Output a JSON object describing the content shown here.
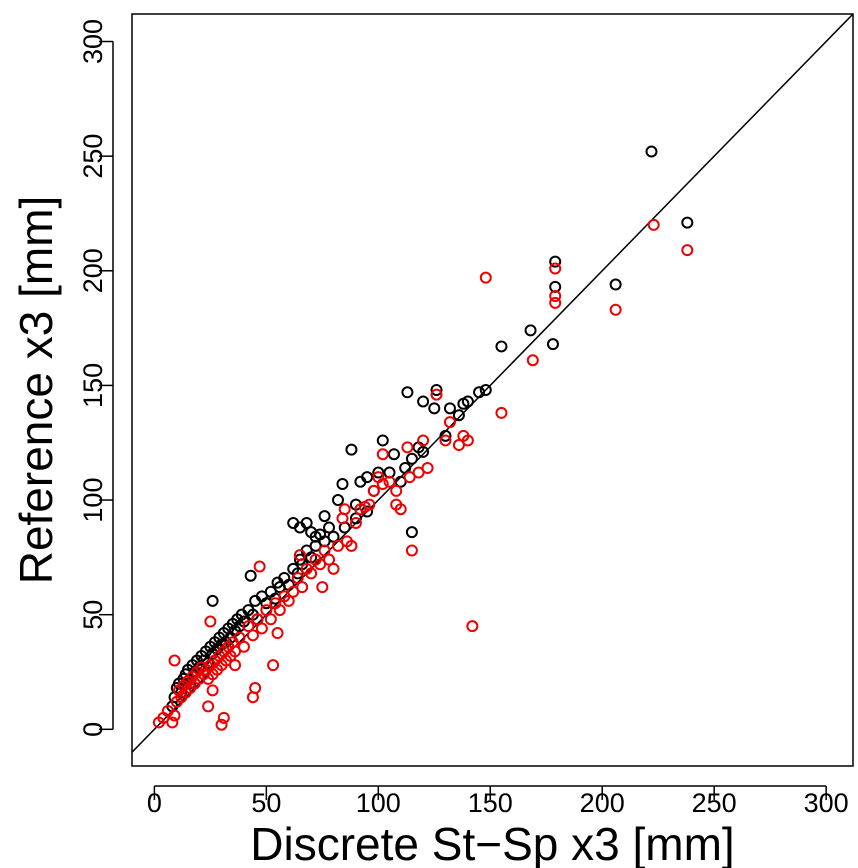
{
  "chart_data": {
    "type": "scatter",
    "title": "",
    "xlabel": "Discrete St−Sp x3 [mm]",
    "ylabel": "Reference x3 [mm]",
    "xlim": [
      -10,
      312
    ],
    "ylim": [
      -16,
      312
    ],
    "xticks": [
      "0",
      "50",
      "100",
      "150",
      "200",
      "250",
      "300"
    ],
    "yticks": [
      "0",
      "50",
      "100",
      "150",
      "200",
      "250",
      "300"
    ],
    "xtick_values": [
      0,
      50,
      100,
      150,
      200,
      250,
      300
    ],
    "ytick_values": [
      0,
      50,
      100,
      150,
      200,
      250,
      300
    ],
    "grid": false,
    "legend": "none",
    "reference_line": {
      "type": "identity",
      "slope": 1,
      "intercept": 0
    },
    "colors": {
      "black_series": "#000000",
      "red_series": "#ee0000"
    },
    "series": [
      {
        "color": "#000000",
        "points": [
          [
            8,
            10
          ],
          [
            9,
            14
          ],
          [
            10,
            18
          ],
          [
            11,
            20
          ],
          [
            12,
            16
          ],
          [
            13,
            22
          ],
          [
            14,
            24
          ],
          [
            15,
            26
          ],
          [
            16,
            20
          ],
          [
            17,
            28
          ],
          [
            18,
            25
          ],
          [
            19,
            30
          ],
          [
            20,
            27
          ],
          [
            21,
            32
          ],
          [
            22,
            30
          ],
          [
            23,
            34
          ],
          [
            24,
            29
          ],
          [
            25,
            36
          ],
          [
            26,
            33
          ],
          [
            27,
            38
          ],
          [
            28,
            35
          ],
          [
            29,
            40
          ],
          [
            30,
            37
          ],
          [
            31,
            42
          ],
          [
            32,
            38
          ],
          [
            33,
            44
          ],
          [
            34,
            40
          ],
          [
            35,
            46
          ],
          [
            36,
            43
          ],
          [
            37,
            48
          ],
          [
            38,
            45
          ],
          [
            39,
            50
          ],
          [
            40,
            47
          ],
          [
            42,
            52
          ],
          [
            44,
            50
          ],
          [
            45,
            56
          ],
          [
            46,
            48
          ],
          [
            48,
            58
          ],
          [
            50,
            55
          ],
          [
            52,
            60
          ],
          [
            54,
            57
          ],
          [
            55,
            64
          ],
          [
            56,
            62
          ],
          [
            58,
            66
          ],
          [
            60,
            63
          ],
          [
            62,
            70
          ],
          [
            64,
            68
          ],
          [
            65,
            74
          ],
          [
            66,
            72
          ],
          [
            68,
            78
          ],
          [
            70,
            75
          ],
          [
            72,
            80
          ],
          [
            74,
            85
          ],
          [
            76,
            82
          ],
          [
            78,
            88
          ],
          [
            80,
            84
          ],
          [
            62,
            90
          ],
          [
            65,
            88
          ],
          [
            68,
            90
          ],
          [
            70,
            86
          ],
          [
            72,
            84
          ],
          [
            76,
            93
          ],
          [
            82,
            100
          ],
          [
            84,
            107
          ],
          [
            88,
            122
          ],
          [
            90,
            98
          ],
          [
            92,
            108
          ],
          [
            95,
            110
          ],
          [
            98,
            104
          ],
          [
            102,
            126
          ],
          [
            105,
            112
          ],
          [
            107,
            120
          ],
          [
            110,
            108
          ],
          [
            112,
            114
          ],
          [
            115,
            86
          ],
          [
            115,
            118
          ],
          [
            118,
            123
          ],
          [
            120,
            121
          ],
          [
            120,
            143
          ],
          [
            126,
            148
          ],
          [
            125,
            140
          ],
          [
            130,
            128
          ],
          [
            132,
            140
          ],
          [
            136,
            137
          ],
          [
            138,
            142
          ],
          [
            140,
            143
          ],
          [
            145,
            147
          ],
          [
            148,
            148
          ],
          [
            113,
            147
          ],
          [
            155,
            167
          ],
          [
            168,
            174
          ],
          [
            178,
            168
          ],
          [
            179,
            193
          ],
          [
            179,
            204
          ],
          [
            206,
            194
          ],
          [
            222,
            252
          ],
          [
            238,
            221
          ],
          [
            26,
            56
          ],
          [
            43,
            67
          ],
          [
            100,
            112
          ],
          [
            95,
            95
          ],
          [
            90,
            92
          ],
          [
            85,
            88
          ]
        ]
      },
      {
        "color": "#ee0000",
        "points": [
          [
            2,
            3
          ],
          [
            4,
            5
          ],
          [
            6,
            8
          ],
          [
            8,
            3
          ],
          [
            9,
            6
          ],
          [
            9,
            30
          ],
          [
            10,
            12
          ],
          [
            11,
            17
          ],
          [
            12,
            14
          ],
          [
            13,
            19
          ],
          [
            14,
            16
          ],
          [
            15,
            21
          ],
          [
            16,
            18
          ],
          [
            17,
            23
          ],
          [
            18,
            20
          ],
          [
            19,
            25
          ],
          [
            20,
            22
          ],
          [
            21,
            27
          ],
          [
            22,
            24
          ],
          [
            23,
            26
          ],
          [
            24,
            22
          ],
          [
            25,
            28
          ],
          [
            26,
            24
          ],
          [
            26,
            17
          ],
          [
            27,
            30
          ],
          [
            28,
            26
          ],
          [
            29,
            32
          ],
          [
            30,
            28
          ],
          [
            30,
            2
          ],
          [
            31,
            5
          ],
          [
            31,
            34
          ],
          [
            32,
            30
          ],
          [
            33,
            36
          ],
          [
            34,
            32
          ],
          [
            35,
            38
          ],
          [
            36,
            34
          ],
          [
            36,
            28
          ],
          [
            38,
            40
          ],
          [
            40,
            36
          ],
          [
            42,
            45
          ],
          [
            44,
            41
          ],
          [
            44,
            14
          ],
          [
            45,
            18
          ],
          [
            46,
            48
          ],
          [
            48,
            44
          ],
          [
            50,
            52
          ],
          [
            52,
            48
          ],
          [
            53,
            28
          ],
          [
            54,
            55
          ],
          [
            56,
            52
          ],
          [
            58,
            58
          ],
          [
            60,
            56
          ],
          [
            62,
            60
          ],
          [
            64,
            66
          ],
          [
            66,
            62
          ],
          [
            68,
            70
          ],
          [
            70,
            68
          ],
          [
            72,
            74
          ],
          [
            74,
            72
          ],
          [
            76,
            78
          ],
          [
            78,
            74
          ],
          [
            80,
            70
          ],
          [
            82,
            80
          ],
          [
            84,
            92
          ],
          [
            86,
            82
          ],
          [
            88,
            80
          ],
          [
            90,
            90
          ],
          [
            92,
            96
          ],
          [
            94,
            97
          ],
          [
            96,
            98
          ],
          [
            98,
            104
          ],
          [
            100,
            110
          ],
          [
            102,
            120
          ],
          [
            105,
            108
          ],
          [
            108,
            98
          ],
          [
            110,
            96
          ],
          [
            113,
            123
          ],
          [
            114,
            110
          ],
          [
            115,
            78
          ],
          [
            118,
            112
          ],
          [
            120,
            126
          ],
          [
            122,
            114
          ],
          [
            126,
            146
          ],
          [
            130,
            126
          ],
          [
            132,
            134
          ],
          [
            136,
            124
          ],
          [
            138,
            128
          ],
          [
            140,
            126
          ],
          [
            142,
            45
          ],
          [
            148,
            197
          ],
          [
            155,
            138
          ],
          [
            169,
            161
          ],
          [
            179,
            186
          ],
          [
            179,
            189
          ],
          [
            179,
            201
          ],
          [
            206,
            183
          ],
          [
            223,
            220
          ],
          [
            238,
            209
          ],
          [
            25,
            47
          ],
          [
            24,
            10
          ],
          [
            47,
            71
          ],
          [
            55,
            42
          ],
          [
            65,
            76
          ],
          [
            75,
            62
          ],
          [
            85,
            96
          ],
          [
            102,
            107
          ],
          [
            108,
            104
          ]
        ]
      }
    ]
  }
}
